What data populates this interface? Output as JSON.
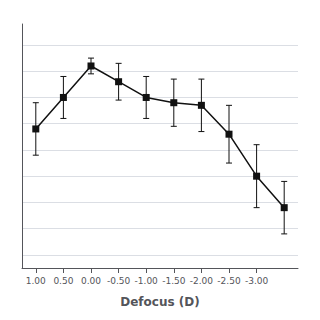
{
  "chart_data": {
    "type": "line",
    "xlabel": "Defocus (D)",
    "x": [
      1.0,
      0.5,
      0.0,
      -0.5,
      -1.0,
      -1.5,
      -2.0,
      -2.5,
      -3.0,
      -3.5
    ],
    "values": [
      -0.02,
      0.1,
      0.22,
      0.16,
      0.1,
      0.08,
      0.07,
      -0.04,
      -0.2,
      -0.32
    ],
    "yerr_low": [
      0.1,
      0.08,
      0.03,
      0.07,
      0.08,
      0.09,
      0.1,
      0.11,
      0.12,
      0.1
    ],
    "yerr_high": [
      0.1,
      0.08,
      0.03,
      0.07,
      0.08,
      0.09,
      0.1,
      0.11,
      0.12,
      0.1
    ],
    "color": "#111111",
    "marker": "square",
    "line_style": "solid",
    "xlim": [
      1.25,
      -3.75
    ],
    "xticks": [
      {
        "value": 1.0,
        "label": "1.00"
      },
      {
        "value": 0.5,
        "label": "0.50"
      },
      {
        "value": 0.0,
        "label": "0.00"
      },
      {
        "value": -0.5,
        "label": "-0.50"
      },
      {
        "value": -1.0,
        "label": "-1.00"
      },
      {
        "value": -1.5,
        "label": "-1.50"
      },
      {
        "value": -2.0,
        "label": "-2.00"
      },
      {
        "value": -2.5,
        "label": "-2.50"
      },
      {
        "value": -3.0,
        "label": "-3.00"
      }
    ],
    "ylim": [
      -0.55,
      0.38
    ],
    "yticks": [
      0.3,
      0.2,
      0.1,
      0.0,
      -0.1,
      -0.2,
      -0.3,
      -0.4,
      -0.5
    ],
    "grid": "y",
    "tick_labels": "x"
  }
}
